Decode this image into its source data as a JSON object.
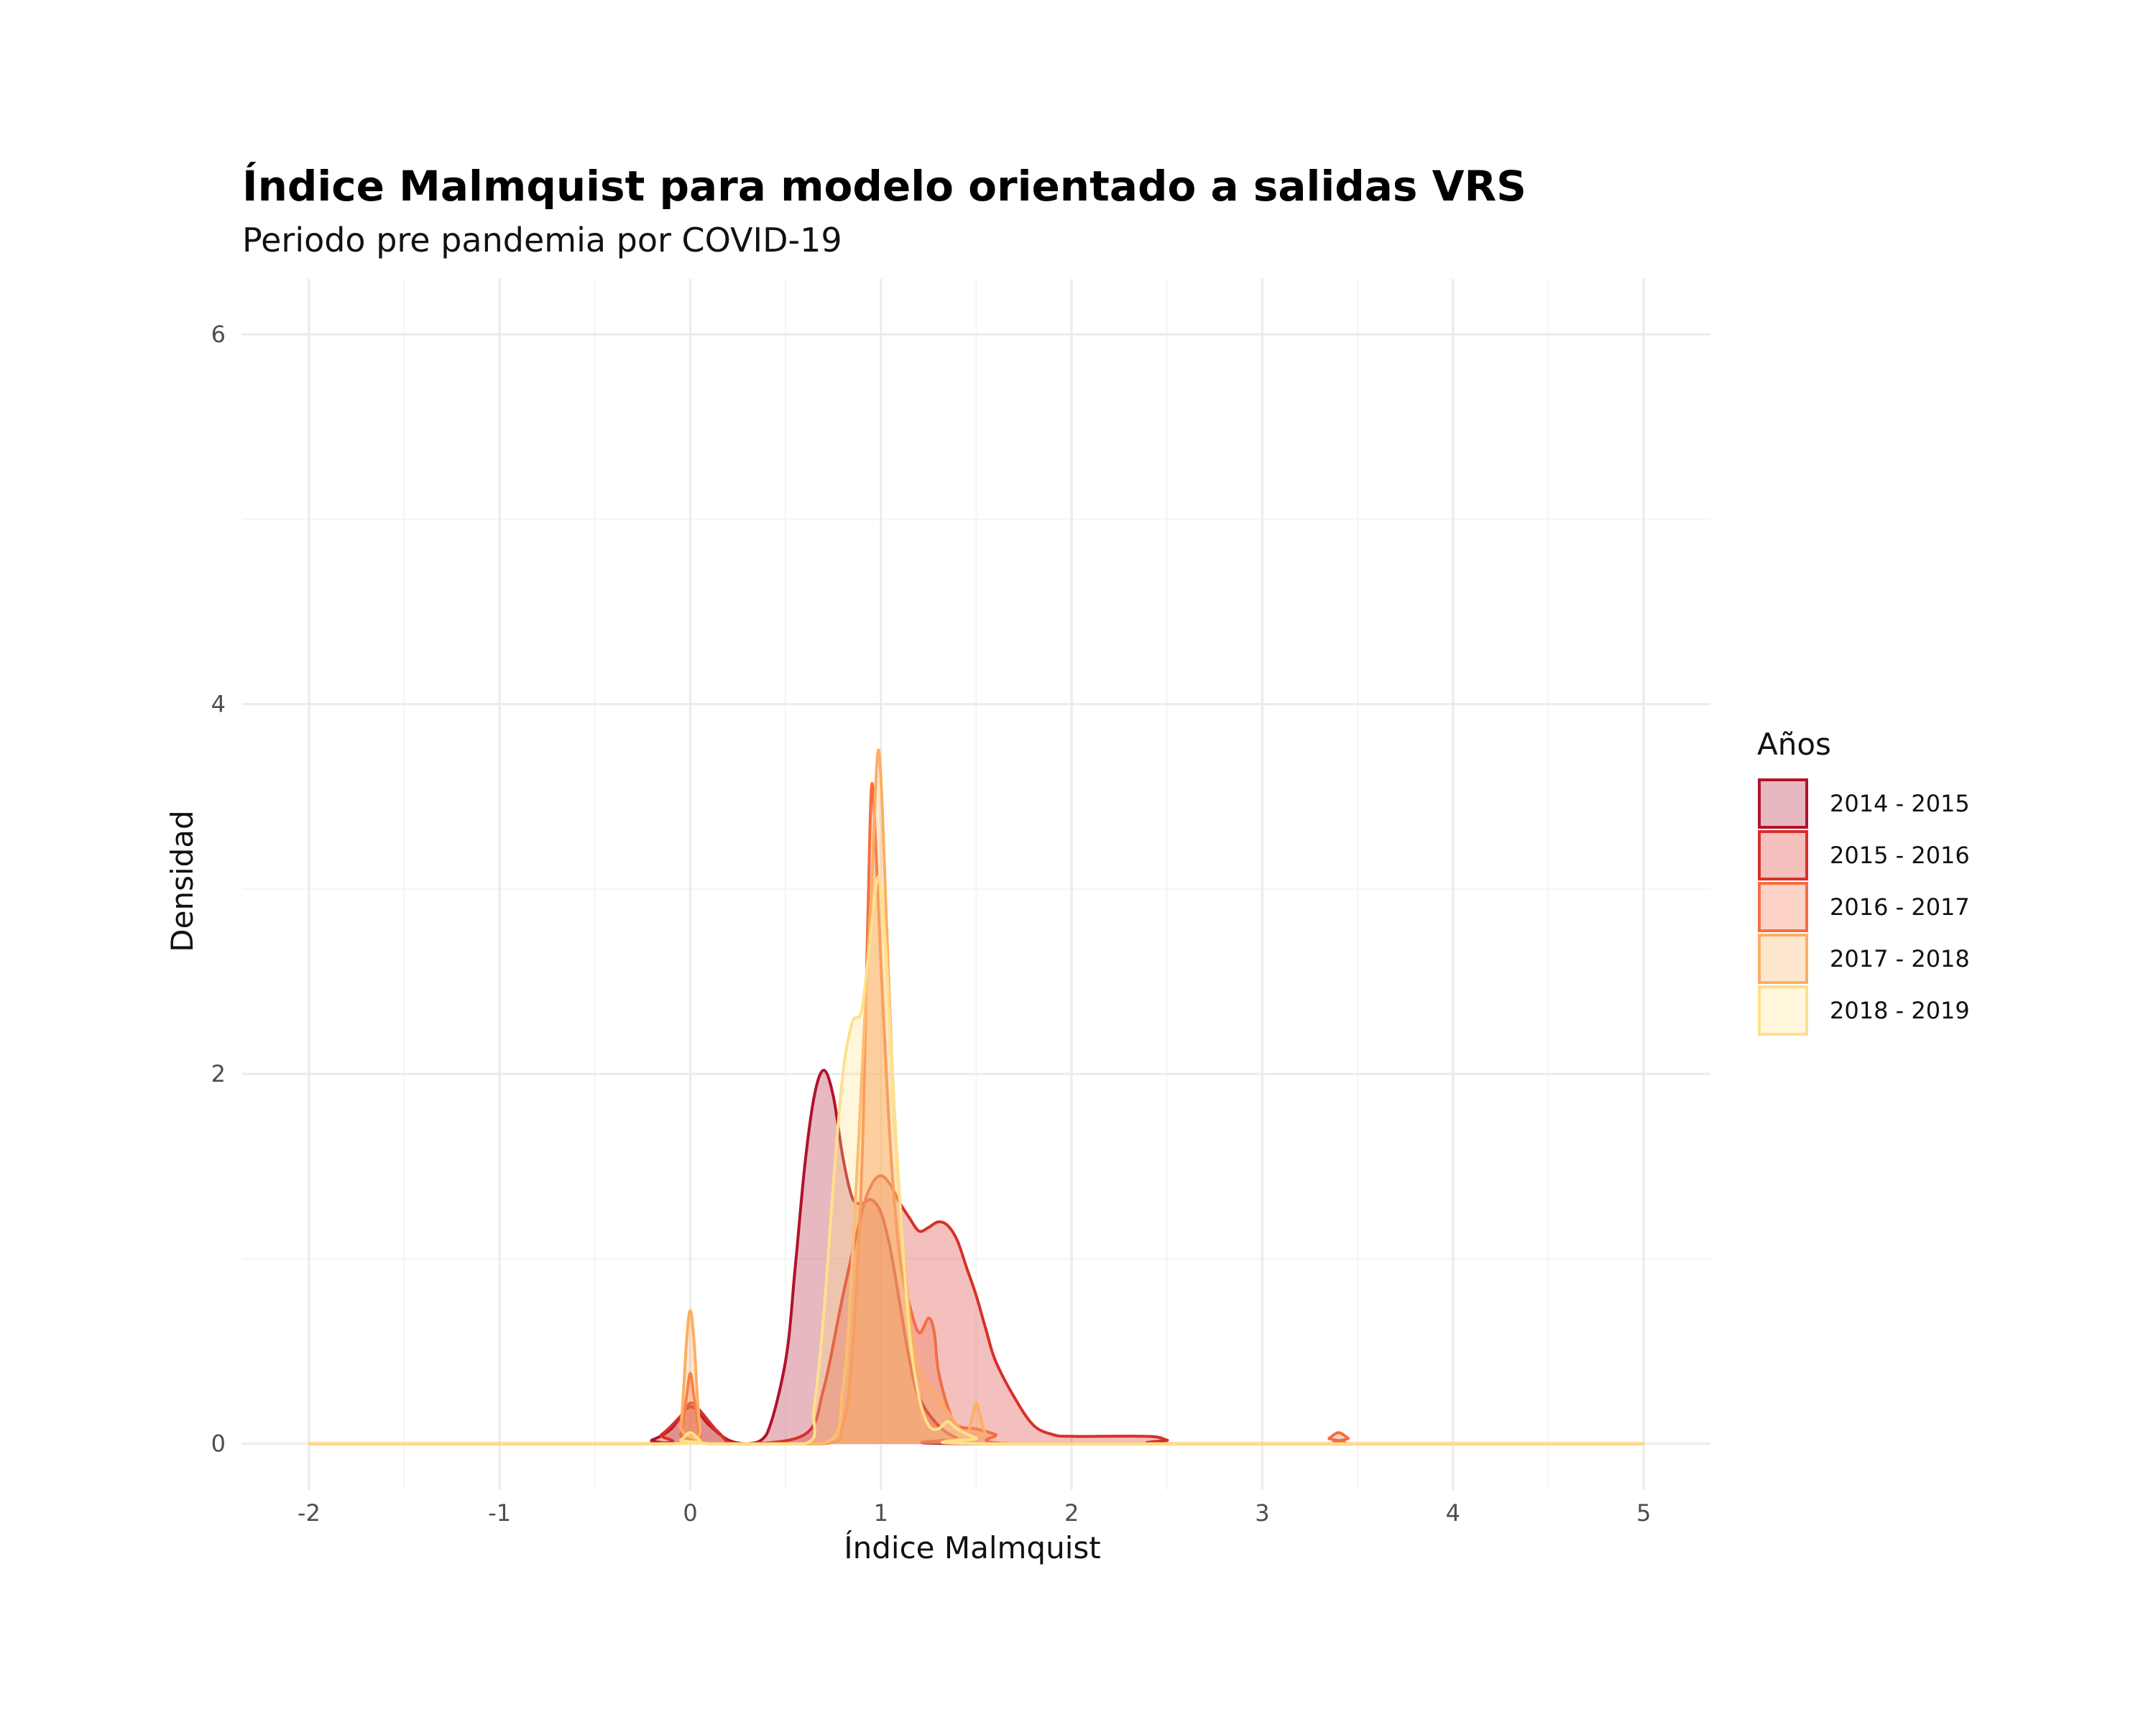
{
  "chart_data": {
    "type": "area",
    "title": "Índice Malmquist para modelo orientado a salidas VRS",
    "subtitle": "Periodo pre pandemia por COVID-19",
    "xlabel": "Índice Malmquist",
    "ylabel": "Densidad",
    "xlim": [
      -2.35,
      5.35
    ],
    "ylim": [
      -0.25,
      6.3
    ],
    "xticks": [
      -2,
      -1,
      0,
      1,
      2,
      3,
      4,
      5
    ],
    "xtick_labels": [
      "-2",
      "-1",
      "0",
      "1",
      "2",
      "3",
      "4",
      "5"
    ],
    "yticks": [
      0,
      2,
      4,
      6
    ],
    "ytick_labels": [
      "0",
      "2",
      "4",
      "6"
    ],
    "grid": true,
    "legend": {
      "title": "Años",
      "position": "right"
    },
    "series": [
      {
        "name": "2014 - 2015",
        "color": "#b0132b",
        "fill_opacity": 0.3,
        "points": [
          [
            -2,
            0
          ],
          [
            -0.3,
            0
          ],
          [
            -0.2,
            0.02
          ],
          [
            -0.1,
            0.08
          ],
          [
            0,
            0.2
          ],
          [
            0.1,
            0.1
          ],
          [
            0.2,
            0.02
          ],
          [
            0.3,
            0
          ],
          [
            0.4,
            0.05
          ],
          [
            0.5,
            0.45
          ],
          [
            0.55,
            0.95
          ],
          [
            0.6,
            1.5
          ],
          [
            0.65,
            1.88
          ],
          [
            0.7,
            2.02
          ],
          [
            0.75,
            1.88
          ],
          [
            0.8,
            1.55
          ],
          [
            0.85,
            1.33
          ],
          [
            0.9,
            1.3
          ],
          [
            0.95,
            1.32
          ],
          [
            1.0,
            1.25
          ],
          [
            1.05,
            1.05
          ],
          [
            1.1,
            0.75
          ],
          [
            1.15,
            0.45
          ],
          [
            1.2,
            0.25
          ],
          [
            1.3,
            0.1
          ],
          [
            1.4,
            0.03
          ],
          [
            1.5,
            0
          ],
          [
            5,
            0
          ]
        ]
      },
      {
        "name": "2015 - 2016",
        "color": "#d73027",
        "fill_opacity": 0.3,
        "points": [
          [
            -2,
            0
          ],
          [
            -0.25,
            0
          ],
          [
            -0.15,
            0.05
          ],
          [
            -0.05,
            0.15
          ],
          [
            0,
            0.22
          ],
          [
            0.05,
            0.18
          ],
          [
            0.15,
            0.06
          ],
          [
            0.25,
            0
          ],
          [
            0.6,
            0.05
          ],
          [
            0.7,
            0.3
          ],
          [
            0.8,
            0.8
          ],
          [
            0.9,
            1.25
          ],
          [
            0.95,
            1.4
          ],
          [
            1.0,
            1.45
          ],
          [
            1.05,
            1.4
          ],
          [
            1.1,
            1.3
          ],
          [
            1.15,
            1.22
          ],
          [
            1.2,
            1.15
          ],
          [
            1.25,
            1.17
          ],
          [
            1.3,
            1.2
          ],
          [
            1.35,
            1.18
          ],
          [
            1.4,
            1.1
          ],
          [
            1.45,
            0.95
          ],
          [
            1.5,
            0.8
          ],
          [
            1.55,
            0.62
          ],
          [
            1.6,
            0.45
          ],
          [
            1.7,
            0.25
          ],
          [
            1.8,
            0.1
          ],
          [
            1.9,
            0.05
          ],
          [
            2.0,
            0.04
          ],
          [
            2.4,
            0.04
          ],
          [
            2.5,
            0.02
          ],
          [
            2.6,
            0
          ],
          [
            5,
            0
          ]
        ]
      },
      {
        "name": "2016 - 2017",
        "color": "#f46d43",
        "fill_opacity": 0.3,
        "points": [
          [
            -2,
            0
          ],
          [
            -0.1,
            0
          ],
          [
            -0.05,
            0.05
          ],
          [
            -0.02,
            0.25
          ],
          [
            0,
            0.38
          ],
          [
            0.02,
            0.25
          ],
          [
            0.05,
            0.05
          ],
          [
            0.1,
            0
          ],
          [
            0.7,
            0
          ],
          [
            0.8,
            0.1
          ],
          [
            0.85,
            0.5
          ],
          [
            0.9,
            1.5
          ],
          [
            0.93,
            2.8
          ],
          [
            0.95,
            3.55
          ],
          [
            0.97,
            3.3
          ],
          [
            1.0,
            2.6
          ],
          [
            1.05,
            1.6
          ],
          [
            1.1,
            1.0
          ],
          [
            1.15,
            0.75
          ],
          [
            1.2,
            0.6
          ],
          [
            1.25,
            0.68
          ],
          [
            1.28,
            0.6
          ],
          [
            1.3,
            0.4
          ],
          [
            1.35,
            0.2
          ],
          [
            1.4,
            0.1
          ],
          [
            1.5,
            0.08
          ],
          [
            1.6,
            0.05
          ],
          [
            1.7,
            0
          ],
          [
            3.3,
            0
          ],
          [
            3.35,
            0.03
          ],
          [
            3.4,
            0.06
          ],
          [
            3.45,
            0.03
          ],
          [
            3.5,
            0
          ],
          [
            5,
            0
          ]
        ]
      },
      {
        "name": "2017 - 2018",
        "color": "#fdae61",
        "fill_opacity": 0.3,
        "points": [
          [
            -2,
            0
          ],
          [
            -0.1,
            0
          ],
          [
            -0.05,
            0.1
          ],
          [
            -0.02,
            0.55
          ],
          [
            0,
            0.72
          ],
          [
            0.02,
            0.55
          ],
          [
            0.05,
            0.1
          ],
          [
            0.1,
            0
          ],
          [
            0.7,
            0
          ],
          [
            0.8,
            0.3
          ],
          [
            0.85,
            1.0
          ],
          [
            0.9,
            2.0
          ],
          [
            0.95,
            3.0
          ],
          [
            0.98,
            3.7
          ],
          [
            1.0,
            3.6
          ],
          [
            1.03,
            2.8
          ],
          [
            1.06,
            2.0
          ],
          [
            1.1,
            1.3
          ],
          [
            1.15,
            0.7
          ],
          [
            1.2,
            0.4
          ],
          [
            1.3,
            0.25
          ],
          [
            1.4,
            0.1
          ],
          [
            1.45,
            0.05
          ],
          [
            1.48,
            0.15
          ],
          [
            1.5,
            0.22
          ],
          [
            1.52,
            0.15
          ],
          [
            1.55,
            0.05
          ],
          [
            1.6,
            0
          ],
          [
            5,
            0
          ]
        ]
      },
      {
        "name": "2018 - 2019",
        "color": "#fee08b",
        "fill_opacity": 0.3,
        "points": [
          [
            -2,
            0
          ],
          [
            -0.1,
            0
          ],
          [
            -0.05,
            0.02
          ],
          [
            0,
            0.06
          ],
          [
            0.05,
            0.02
          ],
          [
            0.1,
            0
          ],
          [
            0.6,
            0
          ],
          [
            0.65,
            0.2
          ],
          [
            0.7,
            0.7
          ],
          [
            0.75,
            1.4
          ],
          [
            0.8,
            2.0
          ],
          [
            0.85,
            2.28
          ],
          [
            0.9,
            2.35
          ],
          [
            0.95,
            2.8
          ],
          [
            0.98,
            3.05
          ],
          [
            1.0,
            3.0
          ],
          [
            1.03,
            2.6
          ],
          [
            1.06,
            2.0
          ],
          [
            1.1,
            1.3
          ],
          [
            1.15,
            0.6
          ],
          [
            1.2,
            0.25
          ],
          [
            1.25,
            0.1
          ],
          [
            1.3,
            0.08
          ],
          [
            1.35,
            0.12
          ],
          [
            1.4,
            0.08
          ],
          [
            1.5,
            0.03
          ],
          [
            1.6,
            0
          ],
          [
            5,
            0
          ]
        ]
      }
    ]
  }
}
